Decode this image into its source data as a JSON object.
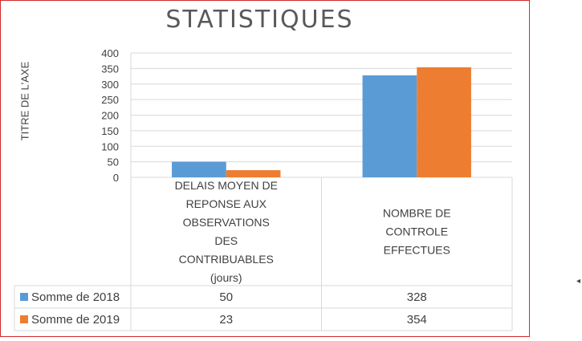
{
  "chart_data": {
    "type": "bar",
    "title": "STATISTIQUES",
    "ylabel": "TITRE DE L'AXE",
    "xlabel": "",
    "ylim": [
      0,
      400
    ],
    "yticks": [
      0,
      50,
      100,
      150,
      200,
      250,
      300,
      350,
      400
    ],
    "grid": true,
    "categories": [
      [
        "DELAIS MOYEN DE",
        "REPONSE AUX",
        "OBSERVATIONS",
        "DES",
        "CONTRIBUABLES",
        "(jours)"
      ],
      [
        "NOMBRE DE",
        "CONTROLE",
        "EFFECTUES"
      ]
    ],
    "series": [
      {
        "name": "Somme de 2018",
        "color": "#5b9bd5",
        "values": [
          50,
          328
        ]
      },
      {
        "name": "Somme de 2019",
        "color": "#ed7d31",
        "values": [
          23,
          354
        ]
      }
    ],
    "legend": "data-table"
  },
  "edge_mark": "◂"
}
